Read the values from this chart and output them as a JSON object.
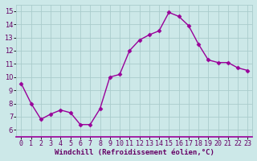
{
  "x": [
    0,
    1,
    2,
    3,
    4,
    5,
    6,
    7,
    8,
    9,
    10,
    11,
    12,
    13,
    14,
    15,
    16,
    17,
    18,
    19,
    20,
    21,
    22,
    23
  ],
  "y": [
    9.5,
    8.0,
    6.8,
    7.2,
    7.5,
    7.3,
    6.4,
    6.4,
    7.6,
    10.0,
    10.2,
    12.0,
    12.8,
    13.2,
    13.5,
    14.9,
    14.6,
    13.9,
    12.5,
    11.3,
    11.1,
    11.1,
    10.7,
    10.5
  ],
  "line_color": "#990099",
  "marker": "D",
  "markersize": 2.5,
  "linewidth": 1.0,
  "xlabel": "Windchill (Refroidissement éolien,°C)",
  "xlabel_fontsize": 6.5,
  "xlabel_color": "#660066",
  "bg_color": "#cce8e8",
  "grid_color": "#aacccc",
  "tick_label_color": "#660066",
  "tick_label_fontsize": 6,
  "xlim": [
    -0.5,
    23.5
  ],
  "ylim": [
    5.5,
    15.5
  ],
  "yticks": [
    6,
    7,
    8,
    9,
    10,
    11,
    12,
    13,
    14,
    15
  ],
  "xtick_labels": [
    "0",
    "1",
    "2",
    "3",
    "4",
    "5",
    "6",
    "7",
    "8",
    "9",
    "10",
    "11",
    "12",
    "13",
    "14",
    "15",
    "16",
    "17",
    "18",
    "19",
    "20",
    "21",
    "22",
    "23"
  ],
  "spine_color": "#990099",
  "bottom_line_color": "#990099"
}
